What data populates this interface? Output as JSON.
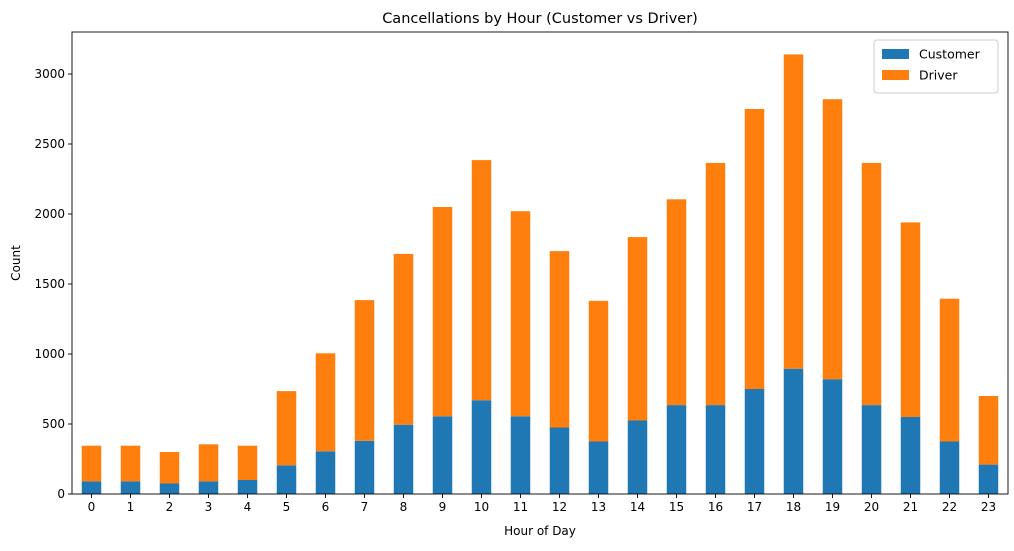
{
  "chart_data": {
    "type": "bar",
    "stacked": true,
    "title": "Cancellations by Hour (Customer vs Driver)",
    "xlabel": "Hour of Day",
    "ylabel": "Count",
    "ylim": [
      0,
      3300
    ],
    "yticks": [
      0,
      500,
      1000,
      1500,
      2000,
      2500,
      3000
    ],
    "categories": [
      "0",
      "1",
      "2",
      "3",
      "4",
      "5",
      "6",
      "7",
      "8",
      "9",
      "10",
      "11",
      "12",
      "13",
      "14",
      "15",
      "16",
      "17",
      "18",
      "19",
      "20",
      "21",
      "22",
      "23"
    ],
    "series": [
      {
        "name": "Customer",
        "color": "#1f77b4",
        "values": [
          90,
          90,
          75,
          90,
          100,
          205,
          305,
          380,
          495,
          555,
          670,
          555,
          475,
          375,
          525,
          635,
          635,
          750,
          895,
          820,
          635,
          550,
          375,
          210
        ]
      },
      {
        "name": "Driver",
        "color": "#ff7f0e",
        "values": [
          255,
          255,
          225,
          265,
          245,
          530,
          700,
          1005,
          1220,
          1495,
          1715,
          1465,
          1260,
          1005,
          1310,
          1470,
          1730,
          2000,
          2245,
          2000,
          1730,
          1390,
          1020,
          490
        ]
      }
    ],
    "grid": false,
    "legend": "top-right"
  }
}
